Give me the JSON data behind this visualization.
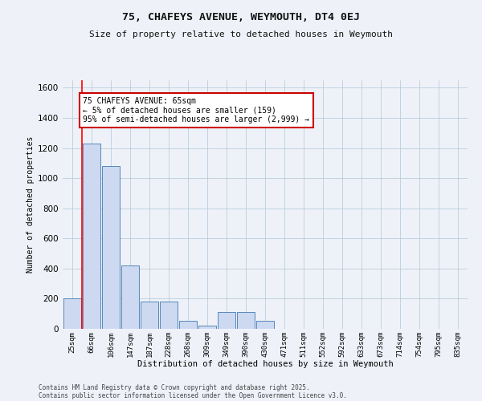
{
  "title1": "75, CHAFEYS AVENUE, WEYMOUTH, DT4 0EJ",
  "title2": "Size of property relative to detached houses in Weymouth",
  "xlabel": "Distribution of detached houses by size in Weymouth",
  "ylabel": "Number of detached properties",
  "categories": [
    "25sqm",
    "66sqm",
    "106sqm",
    "147sqm",
    "187sqm",
    "228sqm",
    "268sqm",
    "309sqm",
    "349sqm",
    "390sqm",
    "430sqm",
    "471sqm",
    "511sqm",
    "552sqm",
    "592sqm",
    "633sqm",
    "673sqm",
    "714sqm",
    "754sqm",
    "795sqm",
    "835sqm"
  ],
  "values": [
    200,
    1230,
    1080,
    420,
    180,
    180,
    55,
    20,
    110,
    110,
    55,
    0,
    0,
    0,
    0,
    0,
    0,
    0,
    0,
    0,
    0
  ],
  "bar_color": "#ccd9f0",
  "bar_edge_color": "#5588bb",
  "grid_color": "#bbccdd",
  "background_color": "#eef2f8",
  "annotation_text": "75 CHAFEYS AVENUE: 65sqm\n← 5% of detached houses are smaller (159)\n95% of semi-detached houses are larger (2,999) →",
  "annotation_box_color": "#ffffff",
  "annotation_border_color": "#cc0000",
  "ylim": [
    0,
    1650
  ],
  "yticks": [
    0,
    200,
    400,
    600,
    800,
    1000,
    1200,
    1400,
    1600
  ],
  "footnote1": "Contains HM Land Registry data © Crown copyright and database right 2025.",
  "footnote2": "Contains public sector information licensed under the Open Government Licence v3.0."
}
